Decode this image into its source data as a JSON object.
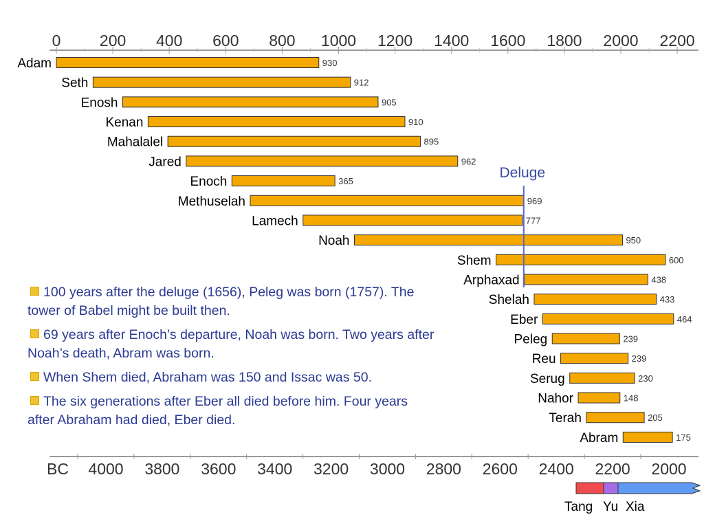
{
  "chart_data": {
    "type": "bar",
    "top_axis": {
      "ticks": [
        0,
        200,
        400,
        600,
        800,
        1000,
        1200,
        1400,
        1600,
        1800,
        2000,
        2200
      ],
      "range": [
        0,
        2300
      ]
    },
    "bottom_axis": {
      "prefix": "BC",
      "ticks": [
        4000,
        3800,
        3600,
        3400,
        3200,
        3000,
        2800,
        2600,
        2400,
        2200,
        2000
      ]
    },
    "bar_color": "#f5a800",
    "series": [
      {
        "name": "Adam",
        "start": 0,
        "lifespan": 930
      },
      {
        "name": "Seth",
        "start": 130,
        "lifespan": 912
      },
      {
        "name": "Enosh",
        "start": 235,
        "lifespan": 905
      },
      {
        "name": "Kenan",
        "start": 325,
        "lifespan": 910
      },
      {
        "name": "Mahalalel",
        "start": 395,
        "lifespan": 895
      },
      {
        "name": "Jared",
        "start": 460,
        "lifespan": 962
      },
      {
        "name": "Enoch",
        "start": 622,
        "lifespan": 365
      },
      {
        "name": "Methuselah",
        "start": 687,
        "lifespan": 969
      },
      {
        "name": "Lamech",
        "start": 874,
        "lifespan": 777
      },
      {
        "name": "Noah",
        "start": 1056,
        "lifespan": 950
      },
      {
        "name": "Shem",
        "start": 1558,
        "lifespan": 600
      },
      {
        "name": "Arphaxad",
        "start": 1658,
        "lifespan": 438
      },
      {
        "name": "Shelah",
        "start": 1693,
        "lifespan": 433
      },
      {
        "name": "Eber",
        "start": 1723,
        "lifespan": 464
      },
      {
        "name": "Peleg",
        "start": 1757,
        "lifespan": 239
      },
      {
        "name": "Reu",
        "start": 1787,
        "lifespan": 239
      },
      {
        "name": "Serug",
        "start": 1819,
        "lifespan": 230
      },
      {
        "name": "Nahor",
        "start": 1849,
        "lifespan": 148
      },
      {
        "name": "Terah",
        "start": 1878,
        "lifespan": 205
      },
      {
        "name": "Abram",
        "start": 2008,
        "lifespan": 175
      }
    ],
    "annotations": [
      {
        "text": "Deluge",
        "x": 1656,
        "color": "#5566cc"
      }
    ]
  },
  "notes": [
    "100 years after the deluge (1656), Peleg was born (1757). The tower of Babel might be built then.",
    "69 years after Enoch’s departure, Noah was born. Two years after Noah’s death, Abram was born.",
    "When Shem died, Abraham was 150 and Issac was 50.",
    "The six generations after Eber all died before him. Four years after Abraham had died, Eber died."
  ],
  "dynasties": {
    "labels": [
      "Tang",
      "Yu",
      "Xia"
    ],
    "colors": [
      "#f04c50",
      "#a56ee8",
      "#5f9bf5"
    ]
  }
}
